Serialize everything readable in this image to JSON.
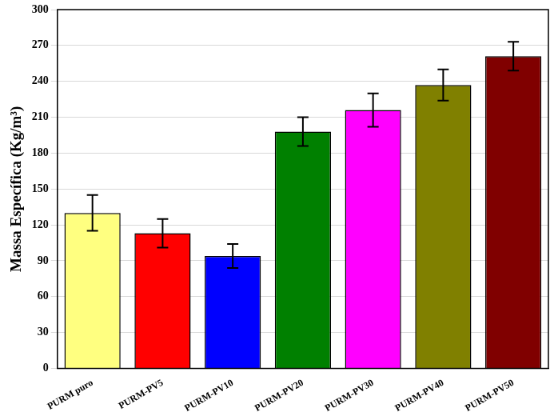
{
  "chart_data": {
    "type": "bar",
    "y_label": "Massa Específica (Kg/m³)",
    "categories": [
      "PURM puro",
      "PURM-PV5",
      "PURM-PV10",
      "PURM-PV20",
      "PURM-PV30",
      "PURM-PV40",
      "PURM-PV50"
    ],
    "values": [
      130,
      113,
      94,
      198,
      216,
      237,
      261
    ],
    "errors": [
      15,
      12,
      10,
      12,
      14,
      13,
      12
    ],
    "colors": [
      "#ffff80",
      "#ff0000",
      "#0000ff",
      "#008000",
      "#ff00ff",
      "#808000",
      "#800000"
    ],
    "ylim": [
      0,
      300
    ],
    "yticks": [
      0,
      30,
      60,
      90,
      120,
      150,
      180,
      210,
      240,
      270,
      300
    ],
    "grid": true
  }
}
